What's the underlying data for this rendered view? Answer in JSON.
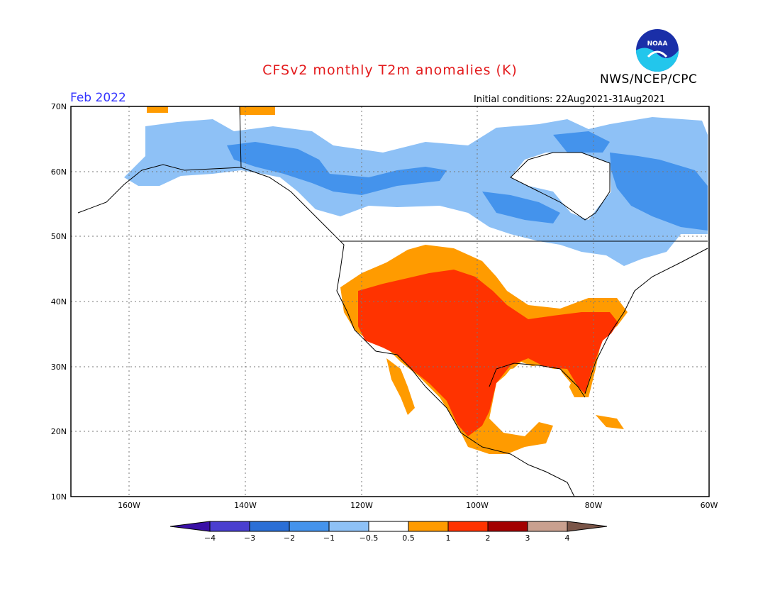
{
  "title": "CFSv2 monthly T2m anomalies (K)",
  "valid_month": "Feb 2022",
  "initial_conditions": "Initial conditions: 22Aug2021-31Aug2021",
  "agency": "NWS/NCEP/CPC",
  "logo_text": "NOAA",
  "map": {
    "lon_range": [
      -172,
      -60
    ],
    "lat_range": [
      10,
      70
    ],
    "lat_ticks": [
      "10N",
      "20N",
      "30N",
      "40N",
      "50N",
      "60N",
      "70N"
    ],
    "lon_ticks": [
      "160W",
      "140W",
      "120W",
      "100W",
      "80W",
      "60W"
    ],
    "grid": true
  },
  "colorbar": {
    "labels": [
      "-4",
      "-3",
      "-2",
      "-1",
      "-0.5",
      "0.5",
      "1",
      "2",
      "3",
      "4"
    ],
    "colors": [
      "#3a10a6",
      "#4a3fcf",
      "#2b6fd6",
      "#4493ec",
      "#8ec1f6",
      "#ffffff",
      "#ff9b00",
      "#ff3300",
      "#a30000",
      "#c9a08f",
      "#7a5548"
    ]
  },
  "anomaly_colors": {
    "lightblue": "#8ec1f6",
    "blue": "#4493ec",
    "orange": "#ff9b00",
    "red": "#ff3300"
  }
}
